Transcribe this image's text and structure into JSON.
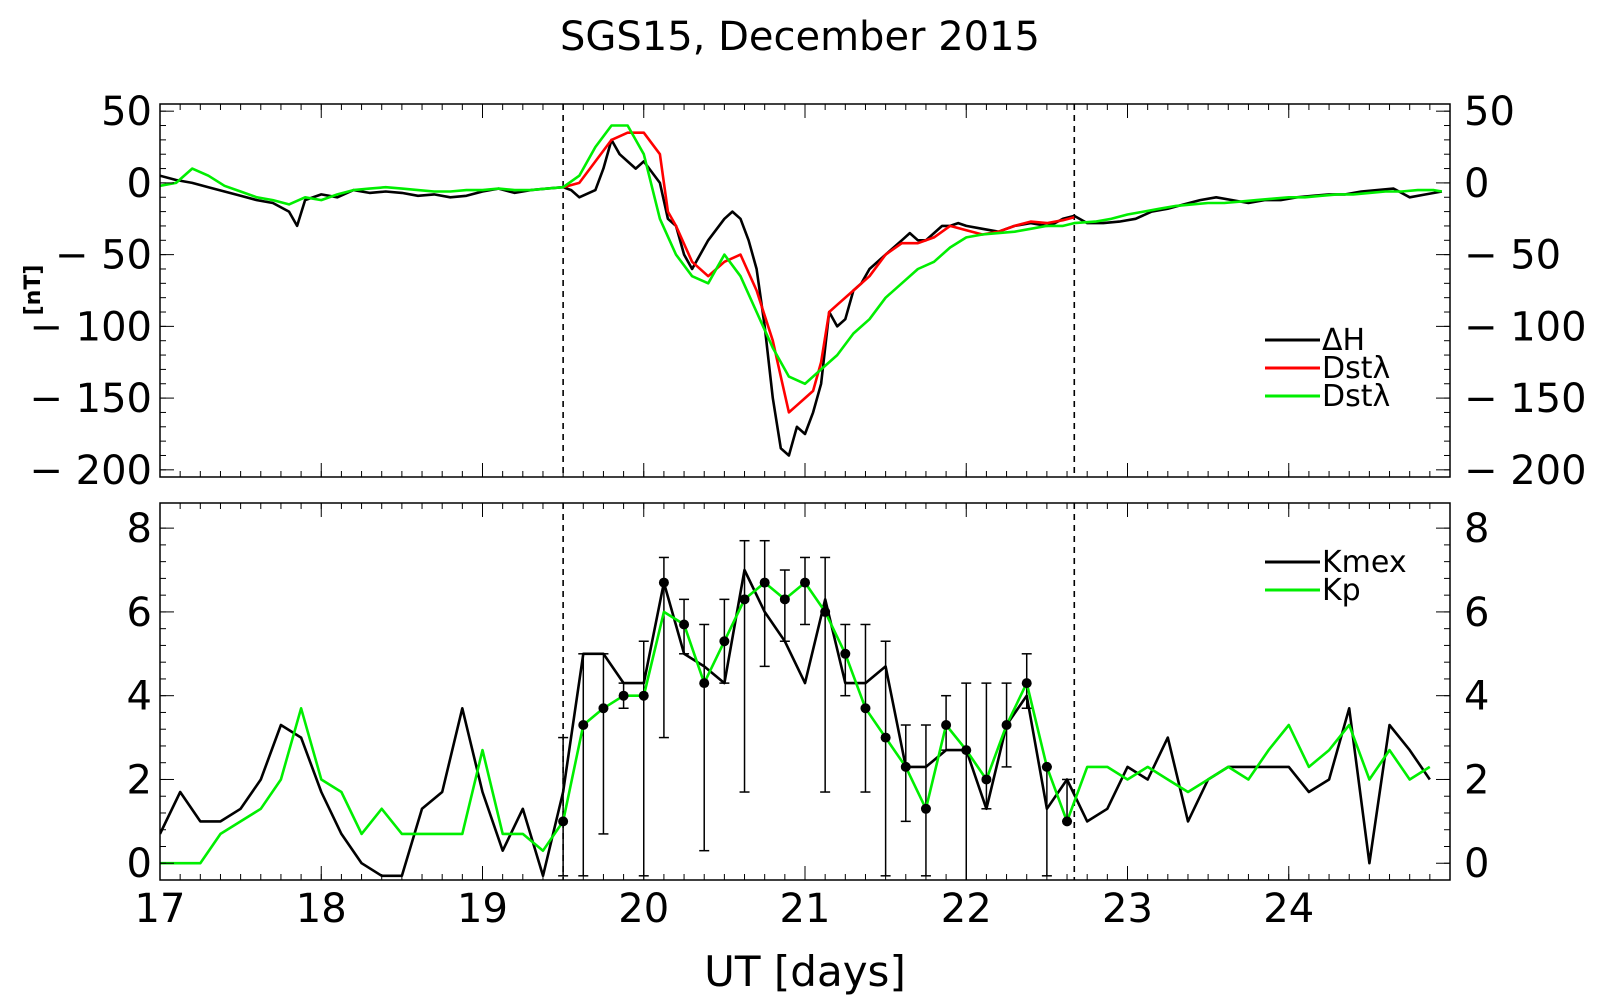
{
  "title": "SGS15, December 2015",
  "colors": {
    "black": "#000000",
    "red": "#ff0000",
    "green": "#00ee00"
  },
  "chart_data": [
    {
      "type": "line",
      "panel": "top",
      "ylabel": "[nT]",
      "xlim": [
        17,
        25
      ],
      "ylim": [
        -205,
        55
      ],
      "yticks": [
        50,
        0,
        -50,
        -100,
        -150,
        -200
      ],
      "ytick_labels": [
        "50",
        "0",
        "− 50",
        "− 100",
        "− 150",
        "− 200"
      ],
      "vlines": [
        19.5,
        22.67
      ],
      "legend_position": "right",
      "series": [
        {
          "name": "ΔH",
          "color": "#000000",
          "x": [
            17.0,
            17.1,
            17.2,
            17.3,
            17.4,
            17.5,
            17.6,
            17.7,
            17.8,
            17.85,
            17.9,
            18.0,
            18.1,
            18.2,
            18.3,
            18.4,
            18.5,
            18.6,
            18.7,
            18.8,
            18.9,
            19.0,
            19.1,
            19.2,
            19.3,
            19.4,
            19.5,
            19.55,
            19.6,
            19.7,
            19.75,
            19.8,
            19.85,
            19.9,
            19.95,
            20.0,
            20.1,
            20.15,
            20.2,
            20.25,
            20.3,
            20.4,
            20.5,
            20.55,
            20.6,
            20.65,
            20.7,
            20.75,
            20.8,
            20.85,
            20.9,
            20.95,
            21.0,
            21.05,
            21.1,
            21.15,
            21.2,
            21.25,
            21.3,
            21.35,
            21.4,
            21.5,
            21.6,
            21.65,
            21.7,
            21.75,
            21.8,
            21.85,
            21.9,
            21.95,
            22.0,
            22.1,
            22.2,
            22.3,
            22.4,
            22.5,
            22.55,
            22.6,
            22.67,
            22.75,
            22.85,
            22.95,
            23.05,
            23.15,
            23.25,
            23.35,
            23.45,
            23.55,
            23.65,
            23.75,
            23.85,
            23.95,
            24.05,
            24.15,
            24.25,
            24.35,
            24.45,
            24.55,
            24.65,
            24.75,
            24.85,
            24.95
          ],
          "y": [
            5,
            2,
            0,
            -3,
            -6,
            -9,
            -12,
            -14,
            -20,
            -30,
            -12,
            -8,
            -10,
            -5,
            -7,
            -6,
            -7,
            -9,
            -8,
            -10,
            -9,
            -6,
            -4,
            -7,
            -5,
            -4,
            -3,
            -5,
            -10,
            -5,
            10,
            30,
            20,
            15,
            10,
            15,
            0,
            -25,
            -30,
            -50,
            -60,
            -40,
            -25,
            -20,
            -25,
            -40,
            -60,
            -100,
            -150,
            -185,
            -190,
            -170,
            -175,
            -160,
            -140,
            -90,
            -100,
            -95,
            -75,
            -70,
            -60,
            -50,
            -40,
            -35,
            -40,
            -40,
            -35,
            -30,
            -30,
            -28,
            -30,
            -32,
            -34,
            -30,
            -28,
            -30,
            -28,
            -25,
            -23,
            -28,
            -28,
            -27,
            -25,
            -20,
            -18,
            -15,
            -12,
            -10,
            -12,
            -14,
            -12,
            -12,
            -10,
            -9,
            -8,
            -8,
            -6,
            -5,
            -4,
            -10,
            -8,
            -6
          ]
        },
        {
          "name": "Dstλ",
          "color": "#ff0000",
          "x": [
            19.5,
            19.6,
            19.7,
            19.8,
            19.9,
            20.0,
            20.1,
            20.15,
            20.2,
            20.3,
            20.4,
            20.5,
            20.6,
            20.7,
            20.8,
            20.85,
            20.9,
            20.95,
            21.0,
            21.05,
            21.1,
            21.15,
            21.2,
            21.3,
            21.4,
            21.5,
            21.6,
            21.7,
            21.8,
            21.9,
            22.0,
            22.1,
            22.2,
            22.3,
            22.4,
            22.5,
            22.6,
            22.67
          ],
          "y": [
            -3,
            0,
            15,
            30,
            35,
            35,
            20,
            -20,
            -30,
            -55,
            -65,
            -55,
            -50,
            -75,
            -110,
            -135,
            -160,
            -155,
            -150,
            -145,
            -125,
            -90,
            -85,
            -75,
            -65,
            -50,
            -42,
            -42,
            -38,
            -30,
            -33,
            -36,
            -34,
            -30,
            -27,
            -28,
            -26,
            -24
          ]
        },
        {
          "name": "Dstλ",
          "color": "#00ee00",
          "x": [
            17.0,
            17.1,
            17.2,
            17.3,
            17.4,
            17.5,
            17.6,
            17.7,
            17.8,
            17.9,
            18.0,
            18.1,
            18.2,
            18.3,
            18.4,
            18.5,
            18.6,
            18.7,
            18.8,
            18.9,
            19.0,
            19.1,
            19.2,
            19.3,
            19.4,
            19.5,
            19.6,
            19.7,
            19.8,
            19.9,
            20.0,
            20.1,
            20.2,
            20.3,
            20.4,
            20.5,
            20.6,
            20.7,
            20.8,
            20.9,
            21.0,
            21.1,
            21.2,
            21.3,
            21.4,
            21.5,
            21.6,
            21.7,
            21.8,
            21.9,
            22.0,
            22.1,
            22.2,
            22.3,
            22.4,
            22.5,
            22.6,
            22.67,
            22.8,
            22.9,
            23.0,
            23.1,
            23.2,
            23.3,
            23.4,
            23.5,
            23.6,
            23.7,
            23.8,
            23.9,
            24.0,
            24.1,
            24.2,
            24.3,
            24.4,
            24.5,
            24.6,
            24.7,
            24.8,
            24.9,
            24.95
          ],
          "y": [
            -2,
            0,
            10,
            5,
            -2,
            -6,
            -10,
            -12,
            -15,
            -10,
            -12,
            -8,
            -5,
            -4,
            -3,
            -4,
            -5,
            -6,
            -6,
            -5,
            -5,
            -4,
            -5,
            -5,
            -4,
            -3,
            5,
            25,
            40,
            40,
            20,
            -25,
            -50,
            -65,
            -70,
            -50,
            -65,
            -90,
            -115,
            -135,
            -140,
            -130,
            -120,
            -105,
            -95,
            -80,
            -70,
            -60,
            -55,
            -45,
            -38,
            -36,
            -35,
            -34,
            -32,
            -30,
            -30,
            -28,
            -27,
            -25,
            -22,
            -20,
            -18,
            -16,
            -15,
            -14,
            -14,
            -13,
            -12,
            -11,
            -10,
            -10,
            -9,
            -8,
            -8,
            -7,
            -6,
            -6,
            -5,
            -5,
            -6
          ]
        }
      ]
    },
    {
      "type": "line",
      "panel": "bottom",
      "xlabel": "UT [days]",
      "xlim": [
        17,
        25
      ],
      "ylim": [
        -0.4,
        8.6
      ],
      "yticks": [
        0,
        2,
        4,
        6,
        8
      ],
      "ytick_labels": [
        "0",
        "2",
        "4",
        "6",
        "8"
      ],
      "xticks": [
        17,
        18,
        19,
        20,
        21,
        22,
        23,
        24
      ],
      "xtick_labels": [
        "17",
        "18",
        "19",
        "20",
        "21",
        "22",
        "23",
        "24"
      ],
      "vlines": [
        19.5,
        22.67
      ],
      "legend_position": "top-right",
      "series": [
        {
          "name": "Kmex",
          "color": "#000000",
          "x": [
            17.0,
            17.125,
            17.25,
            17.375,
            17.5,
            17.625,
            17.75,
            17.875,
            18.0,
            18.125,
            18.25,
            18.375,
            18.5,
            18.625,
            18.75,
            18.875,
            19.0,
            19.125,
            19.25,
            19.375,
            19.5,
            19.625,
            19.75,
            19.875,
            20.0,
            20.125,
            20.25,
            20.375,
            20.5,
            20.625,
            20.75,
            20.875,
            21.0,
            21.125,
            21.25,
            21.375,
            21.5,
            21.625,
            21.75,
            21.875,
            22.0,
            22.125,
            22.25,
            22.375,
            22.5,
            22.625,
            22.75,
            22.875,
            23.0,
            23.125,
            23.25,
            23.375,
            23.5,
            23.625,
            23.75,
            23.875,
            24.0,
            24.125,
            24.25,
            24.375,
            24.5,
            24.625,
            24.75,
            24.875
          ],
          "y": [
            0.7,
            1.7,
            1.0,
            1.0,
            1.3,
            2.0,
            3.3,
            3.0,
            1.7,
            0.7,
            0,
            -0.3,
            -0.3,
            1.3,
            1.7,
            3.7,
            1.7,
            0.3,
            1.3,
            -0.3,
            1.7,
            5.0,
            5.0,
            4.3,
            4.3,
            6.7,
            5.0,
            4.7,
            4.3,
            7.0,
            6.0,
            5.3,
            4.3,
            6.3,
            4.3,
            4.3,
            4.7,
            2.3,
            2.3,
            2.7,
            2.7,
            1.3,
            3.3,
            4.0,
            1.3,
            2.0,
            1.0,
            1.3,
            2.3,
            2.0,
            3.0,
            1.0,
            2.0,
            2.3,
            2.3,
            2.3,
            2.3,
            1.7,
            2.0,
            3.7,
            0,
            3.3,
            2.7,
            2.0
          ]
        },
        {
          "name": "Kp",
          "color": "#00ee00",
          "x": [
            17.0,
            17.125,
            17.25,
            17.375,
            17.5,
            17.625,
            17.75,
            17.875,
            18.0,
            18.125,
            18.25,
            18.375,
            18.5,
            18.625,
            18.75,
            18.875,
            19.0,
            19.125,
            19.25,
            19.375,
            19.5,
            19.625,
            19.75,
            19.875,
            20.0,
            20.125,
            20.25,
            20.375,
            20.5,
            20.625,
            20.75,
            20.875,
            21.0,
            21.125,
            21.25,
            21.375,
            21.5,
            21.625,
            21.75,
            21.875,
            22.0,
            22.125,
            22.25,
            22.375,
            22.5,
            22.625,
            22.75,
            22.875,
            23.0,
            23.125,
            23.25,
            23.375,
            23.5,
            23.625,
            23.75,
            23.875,
            24.0,
            24.125,
            24.25,
            24.375,
            24.5,
            24.625,
            24.75,
            24.875
          ],
          "y": [
            0,
            0,
            0,
            0.7,
            1.0,
            1.3,
            2.0,
            3.7,
            2.0,
            1.7,
            0.7,
            1.3,
            0.7,
            0.7,
            0.7,
            0.7,
            2.7,
            0.7,
            0.7,
            0.3,
            1.0,
            3.3,
            3.7,
            4.0,
            4.0,
            6.0,
            5.7,
            4.3,
            5.3,
            6.3,
            6.7,
            6.3,
            6.7,
            6.0,
            5.0,
            3.7,
            3.0,
            2.3,
            1.3,
            3.3,
            2.7,
            2.0,
            3.3,
            4.3,
            2.3,
            1.0,
            2.3,
            2.3,
            2.0,
            2.3,
            2.0,
            1.7,
            2.0,
            2.3,
            2.0,
            2.7,
            3.3,
            2.3,
            2.7,
            3.3,
            2.0,
            2.7,
            2.0,
            2.3
          ]
        }
      ],
      "error_bars": {
        "x": [
          19.5,
          19.625,
          19.75,
          19.875,
          20.0,
          20.125,
          20.25,
          20.375,
          20.5,
          20.625,
          20.75,
          20.875,
          21.0,
          21.125,
          21.25,
          21.375,
          21.5,
          21.625,
          21.75,
          21.875,
          22.0,
          22.125,
          22.25,
          22.375,
          22.5,
          22.625
        ],
        "y": [
          1.0,
          3.3,
          3.7,
          4.0,
          4.0,
          6.7,
          5.7,
          4.3,
          5.3,
          6.3,
          6.7,
          6.3,
          6.7,
          6.0,
          5.0,
          3.7,
          3.0,
          2.3,
          1.3,
          3.3,
          2.7,
          2.0,
          3.3,
          4.3,
          2.3,
          1.0
        ],
        "low": [
          -0.3,
          -0.3,
          0.7,
          3.7,
          -0.3,
          3.0,
          5.0,
          0.3,
          4.3,
          1.7,
          4.7,
          5.3,
          5.7,
          1.7,
          4.0,
          1.7,
          -0.3,
          1.0,
          -0.3,
          2.7,
          -0.7,
          1.3,
          2.3,
          3.7,
          -0.3,
          1.0
        ],
        "high": [
          3.0,
          5.0,
          5.0,
          4.3,
          5.3,
          7.3,
          6.3,
          5.7,
          6.3,
          7.7,
          7.7,
          7.0,
          7.3,
          7.3,
          5.7,
          5.7,
          5.3,
          3.3,
          3.3,
          4.0,
          4.3,
          4.3,
          4.3,
          5.0,
          2.3,
          2.0
        ]
      }
    }
  ]
}
